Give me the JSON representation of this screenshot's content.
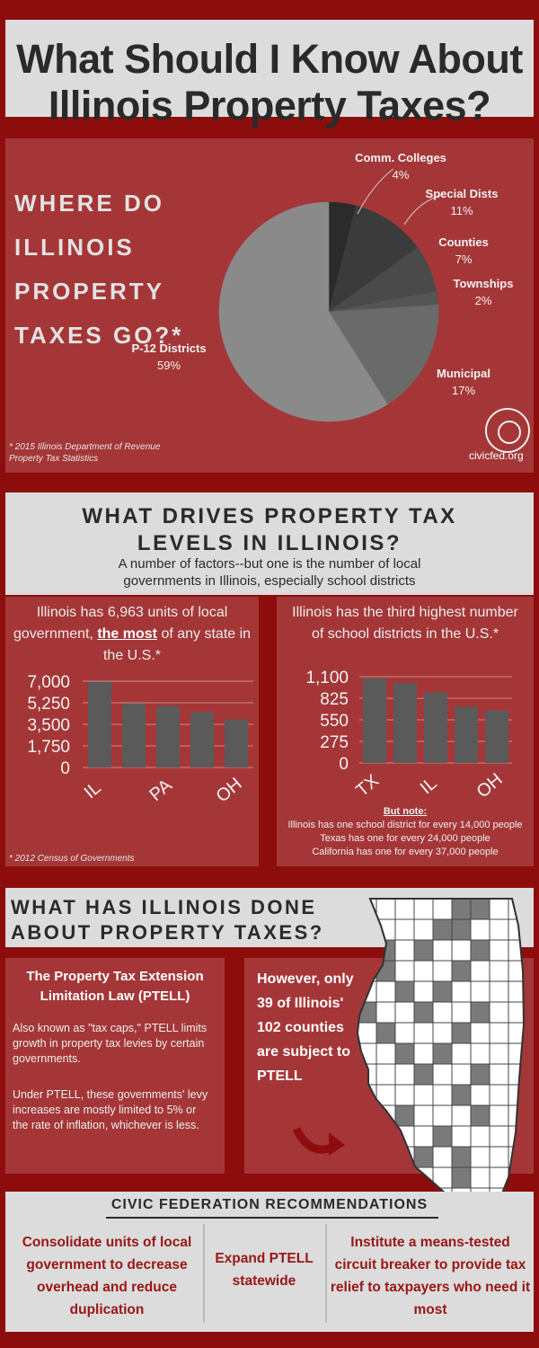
{
  "header": {
    "title_line1": "What Should I Know About",
    "title_line2": "Illinois Property Taxes?"
  },
  "section1": {
    "heading": "WHERE DO ILLINOIS PROPERTY TAXES GO?*",
    "footnote_line1": "* 2015 Illinois Department of Revenue",
    "footnote_line2": "Property Tax Statistics",
    "site": "civicfed.org"
  },
  "section2": {
    "title_line1": "WHAT DRIVES PROPERTY TAX",
    "title_line2": "LEVELS IN ILLINOIS?",
    "subtitle_line1": "A number of factors--but one is the number of local",
    "subtitle_line2": "governments in Illinois, especially school districts",
    "left_title_part1": "Illinois has 6,963 units of local government, ",
    "left_title_bold": "the most",
    "left_title_part2": " of any state in the U.S.*",
    "right_title": "Illinois has the third highest number of school districts in the U.S.*",
    "note_title": "But note:",
    "note_line1": "Illinois has one school district for every 14,000 people",
    "note_line2": "Texas has one for every 24,000 people",
    "note_line3": "California has one for every 37,000 people",
    "census_footnote": "* 2012 Census of Governments"
  },
  "section3": {
    "title_line1": "WHAT HAS ILLINOIS DONE",
    "title_line2": "ABOUT PROPERTY TAXES?",
    "ptell_title_line1": "The Property Tax Extension",
    "ptell_title_line2": "Limitation Law (PTELL)",
    "ptell_text1": "Also known as \"tax caps,\" PTELL limits growth in property tax levies by certain governments.",
    "ptell_text2": "Under PTELL, these governments' levy increases are mostly limited to 5% or the rate of inflation, whichever is less.",
    "county_text": "However, only 39 of Illinois' 102 counties are subject to PTELL"
  },
  "recommendations": {
    "title": "CIVIC FEDERATION RECOMMENDATIONS",
    "items": [
      "Consolidate units of local government to decrease overhead and reduce duplication",
      "Expand PTELL statewide",
      "Institute a means-tested circuit breaker to provide tax relief to taxpayers who need it most"
    ]
  },
  "colors": {
    "dark_red": "#8d0d0d",
    "panel_red": "#a53637",
    "light_gray": "#dcdcdc",
    "bar_gray": "#5a5a5a"
  },
  "chart_data": [
    {
      "type": "pie",
      "title": "WHERE DO ILLINOIS PROPERTY TAXES GO?*",
      "slices": [
        {
          "name": "Comm. Colleges",
          "value": 4,
          "label": "4%",
          "color": "#2b2b2b"
        },
        {
          "name": "Special Dists",
          "value": 11,
          "label": "11%",
          "color": "#3b3b3b"
        },
        {
          "name": "Counties",
          "value": 7,
          "label": "7%",
          "color": "#4a4a4a"
        },
        {
          "name": "Townships",
          "value": 2,
          "label": "2%",
          "color": "#555555"
        },
        {
          "name": "Municipal",
          "value": 17,
          "label": "17%",
          "color": "#6a6a6a"
        },
        {
          "name": "P-12 Districts",
          "value": 59,
          "label": "59%",
          "color": "#8a8a8a"
        }
      ]
    },
    {
      "type": "bar",
      "title": "Illinois has 6,963 units of local government, the most of any state in the U.S.*",
      "categories": [
        "IL",
        "",
        "PA",
        "",
        "OH"
      ],
      "values": [
        6963,
        5200,
        5000,
        4500,
        3900
      ],
      "yticks": [
        "7,000",
        "5,250",
        "3,500",
        "1,750",
        "0"
      ],
      "ylim": [
        0,
        7000
      ]
    },
    {
      "type": "bar",
      "title": "Illinois has the third highest number of school districts in the U.S.*",
      "categories": [
        "TX",
        "",
        "IL",
        "",
        "OH"
      ],
      "values": [
        1080,
        1020,
        900,
        720,
        670
      ],
      "yticks": [
        "1,100",
        "825",
        "550",
        "275",
        "0"
      ],
      "ylim": [
        0,
        1100
      ]
    }
  ]
}
